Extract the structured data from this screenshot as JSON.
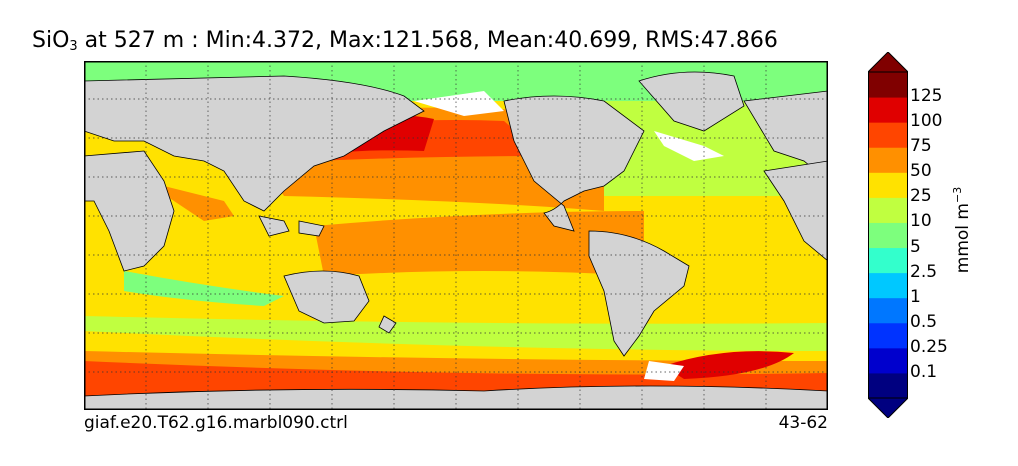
{
  "title": {
    "variable": "SiO",
    "subscript": "3",
    "rest": " at 527 m : Min:4.372, Max:121.568, Mean:40.699, RMS:47.866"
  },
  "footer": {
    "case_name": "giaf.e20.T62.g16.marbl090.ctrl",
    "years": "43-62"
  },
  "colorbar": {
    "units_base": "mmol m",
    "units_exp": "−3",
    "ticks": [
      "125",
      "100",
      "75",
      "50",
      "25",
      "10",
      "5",
      "2.5",
      "1",
      "0.5",
      "0.25",
      "0.1"
    ],
    "colors": [
      "#000080",
      "#0000cd",
      "#0033ff",
      "#0077ff",
      "#00c8ff",
      "#33ffcc",
      "#7dff7d",
      "#c0ff40",
      "#ffe200",
      "#ff9000",
      "#ff4500",
      "#e00000",
      "#800000"
    ],
    "extend_low_color": "#000080",
    "extend_high_color": "#800000"
  },
  "map": {
    "land_color": "#d3d3d3",
    "missing_color": "#ffffff",
    "gridlines": true
  }
}
